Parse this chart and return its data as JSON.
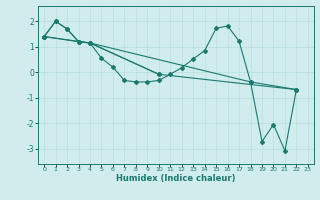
{
  "xlabel": "Humidex (Indice chaleur)",
  "line_color": "#1a7a6e",
  "bg_color": "#d0ecec",
  "grid_color": "#b8dede",
  "xlim": [
    -0.5,
    23.5
  ],
  "ylim": [
    -3.6,
    2.6
  ],
  "xticks": [
    0,
    1,
    2,
    3,
    4,
    5,
    6,
    7,
    8,
    9,
    10,
    11,
    12,
    13,
    14,
    15,
    16,
    17,
    18,
    19,
    20,
    21,
    22,
    23
  ],
  "yticks": [
    -3,
    -2,
    -1,
    0,
    1,
    2
  ],
  "line1_x": [
    0,
    1,
    2,
    3,
    4,
    5,
    6,
    7,
    8,
    9,
    10,
    11,
    12,
    13,
    14,
    15,
    16,
    17,
    18,
    19,
    20,
    21,
    22
  ],
  "line1_y": [
    1.4,
    2.0,
    1.7,
    1.2,
    1.15,
    0.55,
    0.2,
    -0.32,
    -0.38,
    -0.38,
    -0.32,
    -0.08,
    0.18,
    0.52,
    0.85,
    1.72,
    1.82,
    1.22,
    -0.38,
    -2.72,
    -2.05,
    -3.08,
    -0.68
  ],
  "line2_x": [
    0,
    1,
    2,
    3,
    4,
    10
  ],
  "line2_y": [
    1.4,
    2.0,
    1.7,
    1.2,
    1.15,
    -0.08
  ],
  "line3_x": [
    0,
    3,
    4,
    10,
    22
  ],
  "line3_y": [
    1.4,
    1.2,
    1.15,
    -0.08,
    -0.68
  ],
  "line4_x": [
    0,
    4,
    18,
    22
  ],
  "line4_y": [
    1.4,
    1.15,
    -0.38,
    -0.68
  ]
}
